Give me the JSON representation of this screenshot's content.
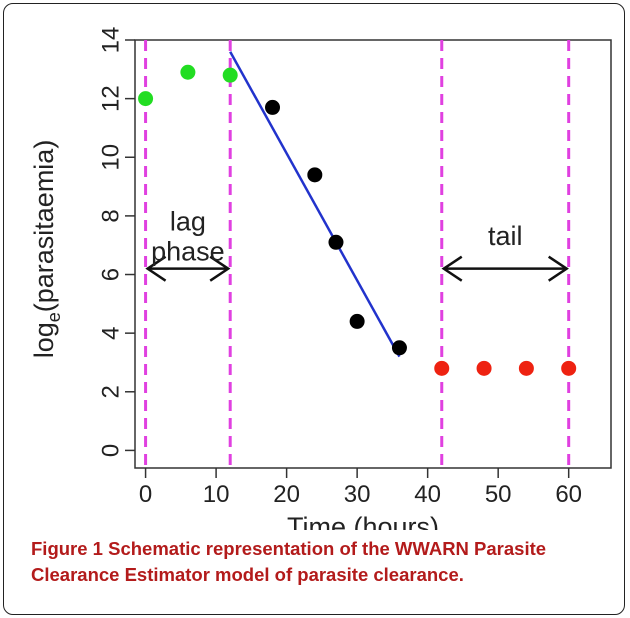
{
  "figure": {
    "caption_label": "Figure 1",
    "caption_text": "Schematic representation of the WWARN Parasite Clearance Estimator model of parasite clearance."
  },
  "chart_data": {
    "type": "scatter",
    "xlabel": "Time (hours)",
    "ylabel_prefix": "log",
    "ylabel_subscript": "e",
    "ylabel_suffix": "(parasitaemia)",
    "xlim": [
      -1.5,
      66
    ],
    "ylim": [
      -0.6,
      14
    ],
    "xticks": [
      0,
      10,
      20,
      30,
      40,
      50,
      60
    ],
    "yticks": [
      0,
      2,
      4,
      6,
      8,
      10,
      12,
      14
    ],
    "grid": false,
    "series": [
      {
        "role": "lag",
        "color": "#22dd22",
        "points": [
          [
            0,
            12.0
          ],
          [
            6,
            12.9
          ],
          [
            12,
            12.8
          ]
        ]
      },
      {
        "role": "clearance",
        "color": "#000000",
        "points": [
          [
            18,
            11.7
          ],
          [
            24,
            9.4
          ],
          [
            27,
            7.1
          ],
          [
            30,
            4.4
          ],
          [
            36,
            3.5
          ]
        ]
      },
      {
        "role": "tail",
        "color": "#ee2211",
        "points": [
          [
            42,
            2.8
          ],
          [
            48,
            2.8
          ],
          [
            54,
            2.8
          ],
          [
            60,
            2.8
          ]
        ]
      }
    ],
    "fit_line": {
      "color": "#2233cc",
      "from": [
        12,
        13.6
      ],
      "to": [
        36,
        3.2
      ]
    },
    "vlines": {
      "color": "#e040e0",
      "x": [
        0,
        12,
        42,
        60
      ]
    },
    "annotations": [
      {
        "lines": [
          "lag",
          "phase"
        ],
        "arrow_from": 0,
        "arrow_to": 12,
        "arrow_y": 6.2,
        "text_x": 6,
        "text_y": 7.5
      },
      {
        "lines": [
          "tail"
        ],
        "arrow_from": 42,
        "arrow_to": 60,
        "arrow_y": 6.2,
        "text_x": 51,
        "text_y": 7.0
      }
    ]
  }
}
